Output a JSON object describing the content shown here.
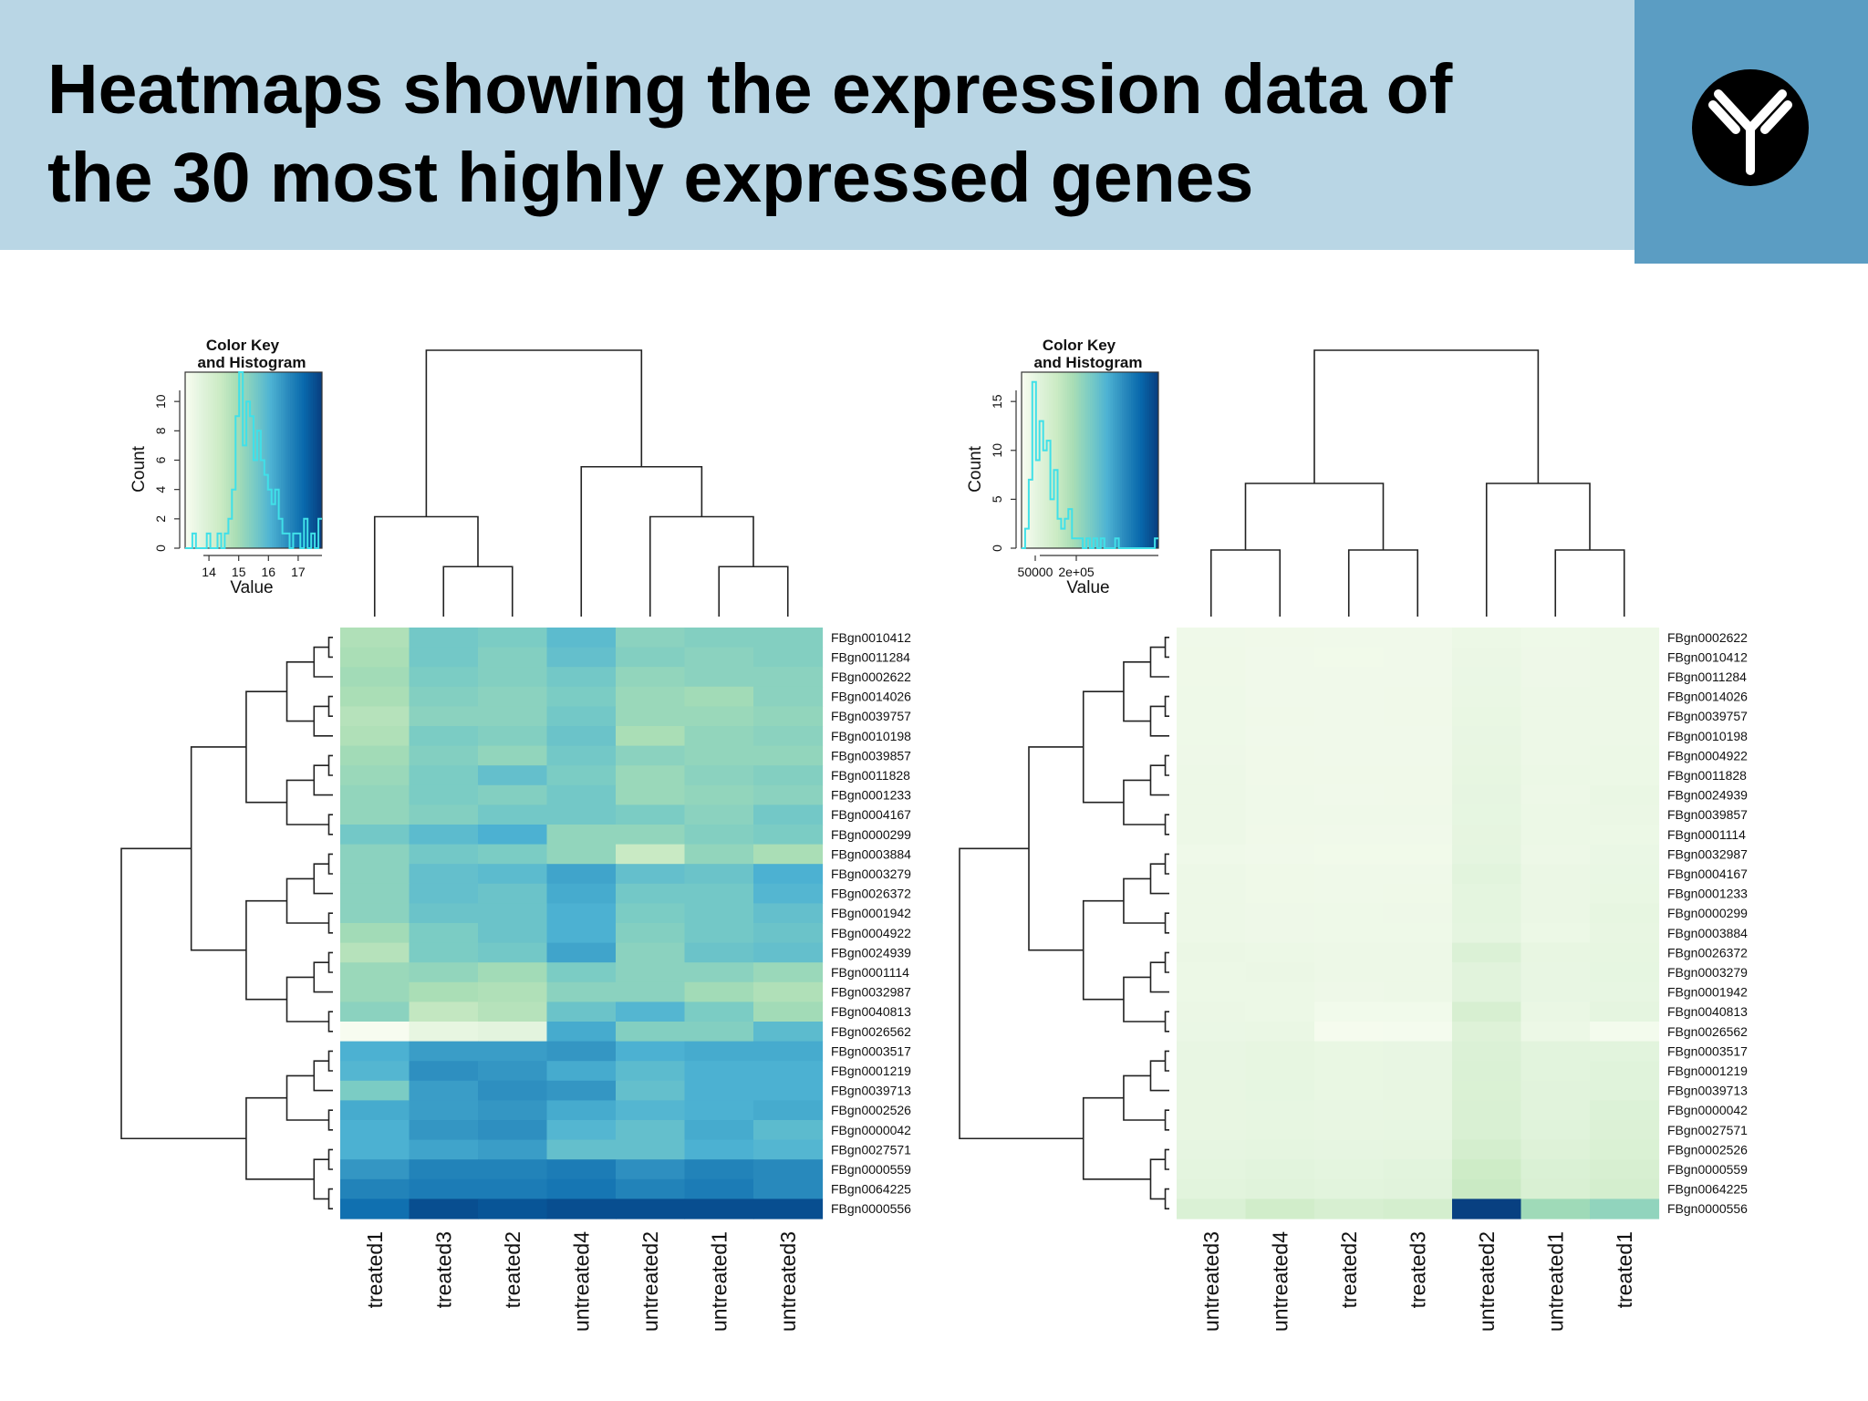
{
  "header": {
    "title": "Heatmaps showing the expression data of\nthe 30 most highly expressed genes"
  },
  "colors": {
    "header_bg": "#b9d6e5",
    "logo_bg": "#5b9dc3",
    "logo_fg": "#000000",
    "palette": [
      "#f7fcf0",
      "#e0f3db",
      "#ccebc5",
      "#a8ddb5",
      "#7bccc4",
      "#4eb3d3",
      "#2b8cbe",
      "#0868ac",
      "#084081"
    ],
    "histogram": "#40e0e8"
  },
  "chart_data": [
    {
      "type": "heatmap",
      "color_key": {
        "title_line1": "Color Key",
        "title_line2": "and Histogram",
        "xlabel": "Value",
        "ylabel": "Count",
        "x_ticks": [
          "14",
          "15",
          "16",
          "17"
        ],
        "y_ticks": [
          "0",
          "2",
          "4",
          "6",
          "8",
          "10"
        ],
        "x_range": [
          13.2,
          17.8
        ],
        "y_range": [
          0,
          12
        ],
        "histogram_counts": [
          0,
          0,
          1,
          0,
          0,
          0,
          1,
          0,
          0,
          1,
          0,
          1,
          2,
          4,
          9,
          12,
          7,
          10,
          9,
          6,
          8,
          6,
          5,
          4,
          3,
          4,
          2,
          1,
          1,
          0,
          1,
          1,
          0,
          2,
          0,
          1,
          0,
          2
        ]
      },
      "columns": [
        "treated1",
        "treated3",
        "treated2",
        "untreated4",
        "untreated2",
        "untreated1",
        "untreated3"
      ],
      "rows": [
        "FBgn0010412",
        "FBgn0011284",
        "FBgn0002622",
        "FBgn0014026",
        "FBgn0039757",
        "FBgn0010198",
        "FBgn0039857",
        "FBgn0011828",
        "FBgn0001233",
        "FBgn0004167",
        "FBgn0000299",
        "FBgn0003884",
        "FBgn0003279",
        "FBgn0026372",
        "FBgn0001942",
        "FBgn0004922",
        "FBgn0024939",
        "FBgn0001114",
        "FBgn0032987",
        "FBgn0040813",
        "FBgn0026562",
        "FBgn0003517",
        "FBgn0001219",
        "FBgn0039713",
        "FBgn0002526",
        "FBgn0000042",
        "FBgn0027571",
        "FBgn0000559",
        "FBgn0064225",
        "FBgn0000556"
      ],
      "values": [
        [
          14.8,
          15.6,
          15.5,
          15.9,
          15.3,
          15.4,
          15.4
        ],
        [
          14.9,
          15.6,
          15.4,
          15.8,
          15.4,
          15.3,
          15.4
        ],
        [
          15.0,
          15.5,
          15.4,
          15.6,
          15.2,
          15.3,
          15.3
        ],
        [
          14.9,
          15.4,
          15.3,
          15.5,
          15.1,
          15.0,
          15.3
        ],
        [
          14.7,
          15.3,
          15.3,
          15.6,
          15.1,
          15.1,
          15.2
        ],
        [
          14.8,
          15.5,
          15.4,
          15.7,
          14.9,
          15.2,
          15.3
        ],
        [
          15.0,
          15.4,
          15.2,
          15.6,
          15.3,
          15.2,
          15.2
        ],
        [
          15.1,
          15.5,
          15.8,
          15.5,
          15.1,
          15.3,
          15.4
        ],
        [
          15.2,
          15.5,
          15.4,
          15.6,
          15.1,
          15.2,
          15.3
        ],
        [
          15.2,
          15.4,
          15.6,
          15.6,
          15.5,
          15.3,
          15.6
        ],
        [
          15.6,
          15.9,
          16.1,
          15.2,
          15.2,
          15.4,
          15.5
        ],
        [
          15.3,
          15.6,
          15.5,
          15.2,
          14.4,
          15.2,
          14.9
        ],
        [
          15.3,
          15.8,
          15.9,
          16.3,
          15.8,
          15.7,
          16.1
        ],
        [
          15.3,
          15.8,
          15.7,
          16.2,
          15.6,
          15.6,
          16.0
        ],
        [
          15.3,
          15.7,
          15.7,
          16.1,
          15.5,
          15.6,
          15.8
        ],
        [
          15.0,
          15.5,
          15.7,
          16.1,
          15.4,
          15.6,
          15.7
        ],
        [
          14.7,
          15.5,
          15.6,
          16.3,
          15.3,
          15.7,
          15.8
        ],
        [
          15.1,
          15.2,
          15.0,
          15.5,
          15.3,
          15.3,
          15.1
        ],
        [
          15.1,
          14.9,
          14.8,
          15.3,
          15.3,
          15.0,
          14.8
        ],
        [
          15.3,
          14.5,
          14.7,
          15.7,
          16.0,
          15.5,
          15.0
        ],
        [
          13.2,
          13.6,
          13.7,
          16.2,
          15.4,
          15.4,
          15.9
        ],
        [
          16.1,
          16.4,
          16.4,
          16.5,
          16.1,
          16.2,
          16.2
        ],
        [
          16.0,
          16.6,
          16.5,
          16.2,
          15.9,
          16.1,
          16.1
        ],
        [
          15.5,
          16.4,
          16.6,
          16.5,
          15.8,
          16.1,
          16.1
        ],
        [
          16.2,
          16.4,
          16.5,
          16.2,
          16.0,
          16.1,
          16.2
        ],
        [
          16.1,
          16.5,
          16.6,
          16.0,
          15.8,
          16.2,
          15.9
        ],
        [
          16.1,
          16.3,
          16.4,
          15.8,
          15.8,
          16.1,
          16.0
        ],
        [
          16.5,
          16.8,
          16.8,
          16.9,
          16.6,
          16.8,
          16.7
        ],
        [
          16.8,
          16.9,
          16.9,
          17.0,
          16.8,
          16.9,
          16.7
        ],
        [
          17.1,
          17.6,
          17.5,
          17.6,
          17.6,
          17.6,
          17.6
        ]
      ],
      "value_range": [
        13.2,
        17.8
      ]
    },
    {
      "type": "heatmap",
      "color_key": {
        "title_line1": "Color Key",
        "title_line2": "and Histogram",
        "xlabel": "Value",
        "ylabel": "Count",
        "x_ticks": [
          "50000",
          "2e+05"
        ],
        "y_ticks": [
          "0",
          "5",
          "10",
          "15"
        ],
        "x_range": [
          0,
          500000
        ],
        "y_range": [
          0,
          18
        ],
        "histogram_counts": [
          0,
          2,
          7,
          17,
          9,
          13,
          10,
          11,
          5,
          8,
          3,
          2,
          3,
          4,
          1,
          1,
          1,
          0,
          1,
          0,
          1,
          0,
          1,
          0,
          0,
          0,
          1,
          0,
          0,
          0,
          0,
          0,
          0,
          0,
          0,
          0,
          0,
          1
        ]
      },
      "columns": [
        "untreated3",
        "untreated4",
        "treated2",
        "treated3",
        "untreated2",
        "untreated1",
        "treated1"
      ],
      "rows": [
        "FBgn0002622",
        "FBgn0010412",
        "FBgn0011284",
        "FBgn0014026",
        "FBgn0039757",
        "FBgn0010198",
        "FBgn0004922",
        "FBgn0011828",
        "FBgn0024939",
        "FBgn0039857",
        "FBgn0001114",
        "FBgn0032987",
        "FBgn0004167",
        "FBgn0001233",
        "FBgn0000299",
        "FBgn0003884",
        "FBgn0026372",
        "FBgn0003279",
        "FBgn0001942",
        "FBgn0040813",
        "FBgn0026562",
        "FBgn0003517",
        "FBgn0001219",
        "FBgn0039713",
        "FBgn0000042",
        "FBgn0027571",
        "FBgn0002526",
        "FBgn0000559",
        "FBgn0064225",
        "FBgn0000556"
      ],
      "values": [
        [
          22000,
          20000,
          19000,
          19000,
          30000,
          24000,
          26000
        ],
        [
          23000,
          18000,
          17000,
          18000,
          33000,
          25000,
          28000
        ],
        [
          23000,
          18000,
          18000,
          19000,
          34000,
          25000,
          27000
        ],
        [
          24000,
          19000,
          19000,
          20000,
          36000,
          26000,
          28000
        ],
        [
          24000,
          20000,
          18000,
          20000,
          38000,
          26000,
          27000
        ],
        [
          24000,
          19000,
          18000,
          19000,
          40000,
          27000,
          28000
        ],
        [
          25000,
          20000,
          19000,
          19000,
          42000,
          28000,
          30000
        ],
        [
          26000,
          20000,
          20000,
          20000,
          44000,
          29000,
          31000
        ],
        [
          27000,
          21000,
          19000,
          20000,
          46000,
          28000,
          36000
        ],
        [
          26000,
          22000,
          21000,
          21000,
          45000,
          30000,
          33000
        ],
        [
          26000,
          20000,
          18000,
          19000,
          47000,
          29000,
          31000
        ],
        [
          21000,
          19000,
          17000,
          17000,
          48000,
          28000,
          34000
        ],
        [
          27000,
          23000,
          22000,
          22000,
          56000,
          33000,
          37000
        ],
        [
          28000,
          23000,
          22000,
          23000,
          52000,
          33000,
          38000
        ],
        [
          27000,
          25000,
          24000,
          25000,
          52000,
          32000,
          44000
        ],
        [
          26000,
          25000,
          24000,
          24000,
          48000,
          30000,
          42000
        ],
        [
          33000,
          31000,
          27000,
          28000,
          78000,
          42000,
          44000
        ],
        [
          30000,
          33000,
          26000,
          27000,
          60000,
          40000,
          45000
        ],
        [
          31000,
          31000,
          25000,
          26000,
          60000,
          40000,
          43000
        ],
        [
          33000,
          30000,
          15000,
          16000,
          92000,
          36000,
          48000
        ],
        [
          34000,
          36000,
          6000,
          7000,
          70000,
          30000,
          10000
        ],
        [
          40000,
          44000,
          38000,
          40000,
          78000,
          56000,
          58000
        ],
        [
          40000,
          44000,
          38000,
          40000,
          80000,
          58000,
          62000
        ],
        [
          42000,
          45000,
          38000,
          41000,
          82000,
          60000,
          62000
        ],
        [
          41000,
          43000,
          40000,
          42000,
          84000,
          60000,
          74000
        ],
        [
          41000,
          44000,
          42000,
          43000,
          84000,
          62000,
          76000
        ],
        [
          46000,
          49000,
          46000,
          47000,
          100000,
          70000,
          82000
        ],
        [
          52000,
          58000,
          52000,
          58000,
          120000,
          80000,
          90000
        ],
        [
          56000,
          62000,
          56000,
          60000,
          128000,
          84000,
          100000
        ],
        [
          80000,
          110000,
          90000,
          100000,
          500000,
          200000,
          220000
        ]
      ],
      "value_range": [
        0,
        500000
      ]
    }
  ]
}
